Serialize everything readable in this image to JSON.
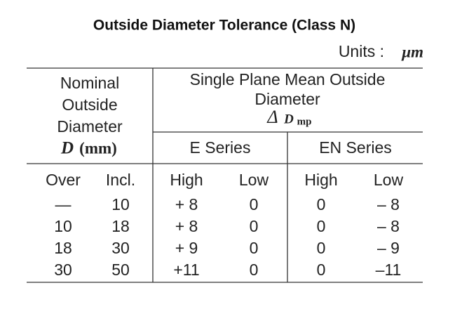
{
  "title": "Outside Diameter Tolerance (Class N)",
  "units": {
    "label": "Units :",
    "unit": "μm"
  },
  "table": {
    "header": {
      "nominal": {
        "lines": [
          "Nominal",
          "Outside",
          "Diameter"
        ],
        "symbol": "D",
        "unit": "(mm)"
      },
      "deviation": {
        "lines": [
          "Single Plane Mean Outside",
          "Diameter"
        ],
        "delta": "Δ",
        "symbol": "D",
        "subscript": "mp"
      },
      "series": [
        "E Series",
        "EN Series"
      ],
      "columns": [
        "Over",
        "Incl.",
        "High",
        "Low",
        "High",
        "Low"
      ]
    },
    "rows": [
      [
        "—",
        "10",
        "+ 8",
        "0",
        "0",
        "– 8"
      ],
      [
        "10",
        "18",
        "+ 8",
        "0",
        "0",
        "– 8"
      ],
      [
        "18",
        "30",
        "+ 9",
        "0",
        "0",
        "– 9"
      ],
      [
        "30",
        "50",
        "+11",
        "0",
        "0",
        "–11"
      ]
    ]
  }
}
